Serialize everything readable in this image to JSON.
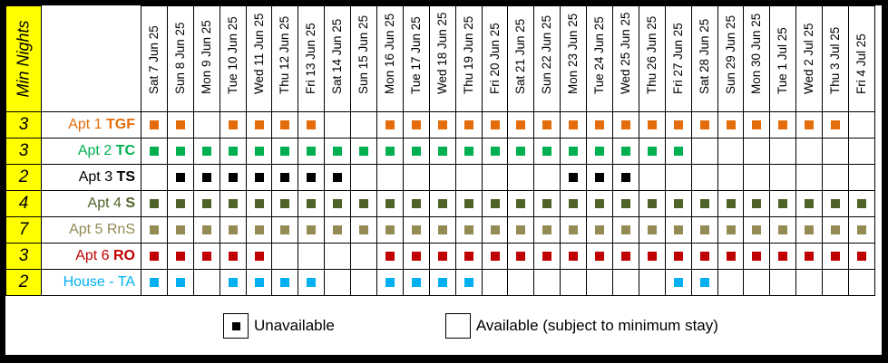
{
  "header": {
    "min_nights_label": "Min Nights"
  },
  "dates": [
    "Sat 7 Jun 25",
    "Sun 8 Jun 25",
    "Mon 9 Jun 25",
    "Tue 10 Jun 25",
    "Wed 11 Jun 25",
    "Thu 12 Jun 25",
    "Fri 13 Jun 25",
    "Sat 14 Jun 25",
    "Sun 15 Jun 25",
    "Mon 16 Jun 25",
    "Tue 17 Jun 25",
    "Wed 18 Jun 25",
    "Thu 19 Jun 25",
    "Fri 20 Jun 25",
    "Sat 21 Jun 25",
    "Sun 22 Jun 25",
    "Mon 23 Jun 25",
    "Tue 24 Jun 25",
    "Wed 25 Jun 25",
    "Thu 26 Jun 25",
    "Fri 27 Jun 25",
    "Sat 28 Jun 25",
    "Sun 29 Jun 25",
    "Mon 30 Jun 25",
    "Tue 1 Jul 25",
    "Wed 2 Jul 25",
    "Thu 3 Jul 25",
    "Fri 4 Jul 25"
  ],
  "properties": [
    {
      "min_nights": "3",
      "name": "Apt 1 ",
      "code": "TGF",
      "color": "#e46c0a",
      "unavailable": [
        1,
        1,
        0,
        1,
        1,
        1,
        1,
        0,
        0,
        1,
        1,
        1,
        1,
        1,
        1,
        1,
        1,
        1,
        1,
        1,
        1,
        1,
        1,
        1,
        1,
        1,
        1,
        0
      ]
    },
    {
      "min_nights": "3",
      "name": "Apt 2 ",
      "code": "TC",
      "color": "#00b050",
      "unavailable": [
        1,
        1,
        1,
        1,
        1,
        1,
        1,
        1,
        1,
        1,
        1,
        1,
        1,
        1,
        1,
        1,
        1,
        1,
        1,
        1,
        1,
        0,
        0,
        0,
        0,
        0,
        0,
        0
      ]
    },
    {
      "min_nights": "2",
      "name": "Apt 3 ",
      "code": "TS",
      "color": "#000000",
      "unavailable": [
        0,
        1,
        1,
        1,
        1,
        1,
        1,
        1,
        0,
        0,
        0,
        0,
        0,
        0,
        0,
        0,
        1,
        1,
        1,
        0,
        0,
        0,
        0,
        0,
        0,
        0,
        0,
        0
      ]
    },
    {
      "min_nights": "4",
      "name": "Apt 4 ",
      "code": "S",
      "color": "#4f6228",
      "unavailable": [
        1,
        1,
        1,
        1,
        1,
        1,
        1,
        1,
        1,
        1,
        1,
        1,
        1,
        1,
        1,
        1,
        1,
        1,
        1,
        1,
        1,
        1,
        1,
        1,
        1,
        1,
        1,
        1
      ]
    },
    {
      "min_nights": "7",
      "name": "Apt 5 RnS",
      "code": "",
      "color": "#948a54",
      "unavailable": [
        1,
        1,
        1,
        1,
        1,
        1,
        1,
        1,
        1,
        1,
        1,
        1,
        1,
        1,
        1,
        1,
        1,
        1,
        1,
        1,
        1,
        1,
        1,
        1,
        1,
        1,
        1,
        1
      ]
    },
    {
      "min_nights": "3",
      "name": "Apt 6 ",
      "code": "RO",
      "color": "#c00000",
      "unavailable": [
        1,
        1,
        1,
        1,
        1,
        0,
        0,
        0,
        0,
        1,
        1,
        1,
        1,
        1,
        1,
        1,
        1,
        1,
        1,
        1,
        1,
        1,
        1,
        1,
        1,
        1,
        1,
        1
      ]
    },
    {
      "min_nights": "2",
      "name": "House - TA",
      "code": "",
      "color": "#00b0f0",
      "unavailable": [
        1,
        1,
        0,
        1,
        1,
        1,
        1,
        0,
        0,
        1,
        1,
        1,
        1,
        0,
        0,
        0,
        0,
        0,
        0,
        0,
        1,
        1,
        0,
        0,
        0,
        0,
        0,
        0
      ]
    }
  ],
  "legend": {
    "unavailable_label": "Unavailable",
    "available_label": "Available (subject to minimum stay)"
  }
}
